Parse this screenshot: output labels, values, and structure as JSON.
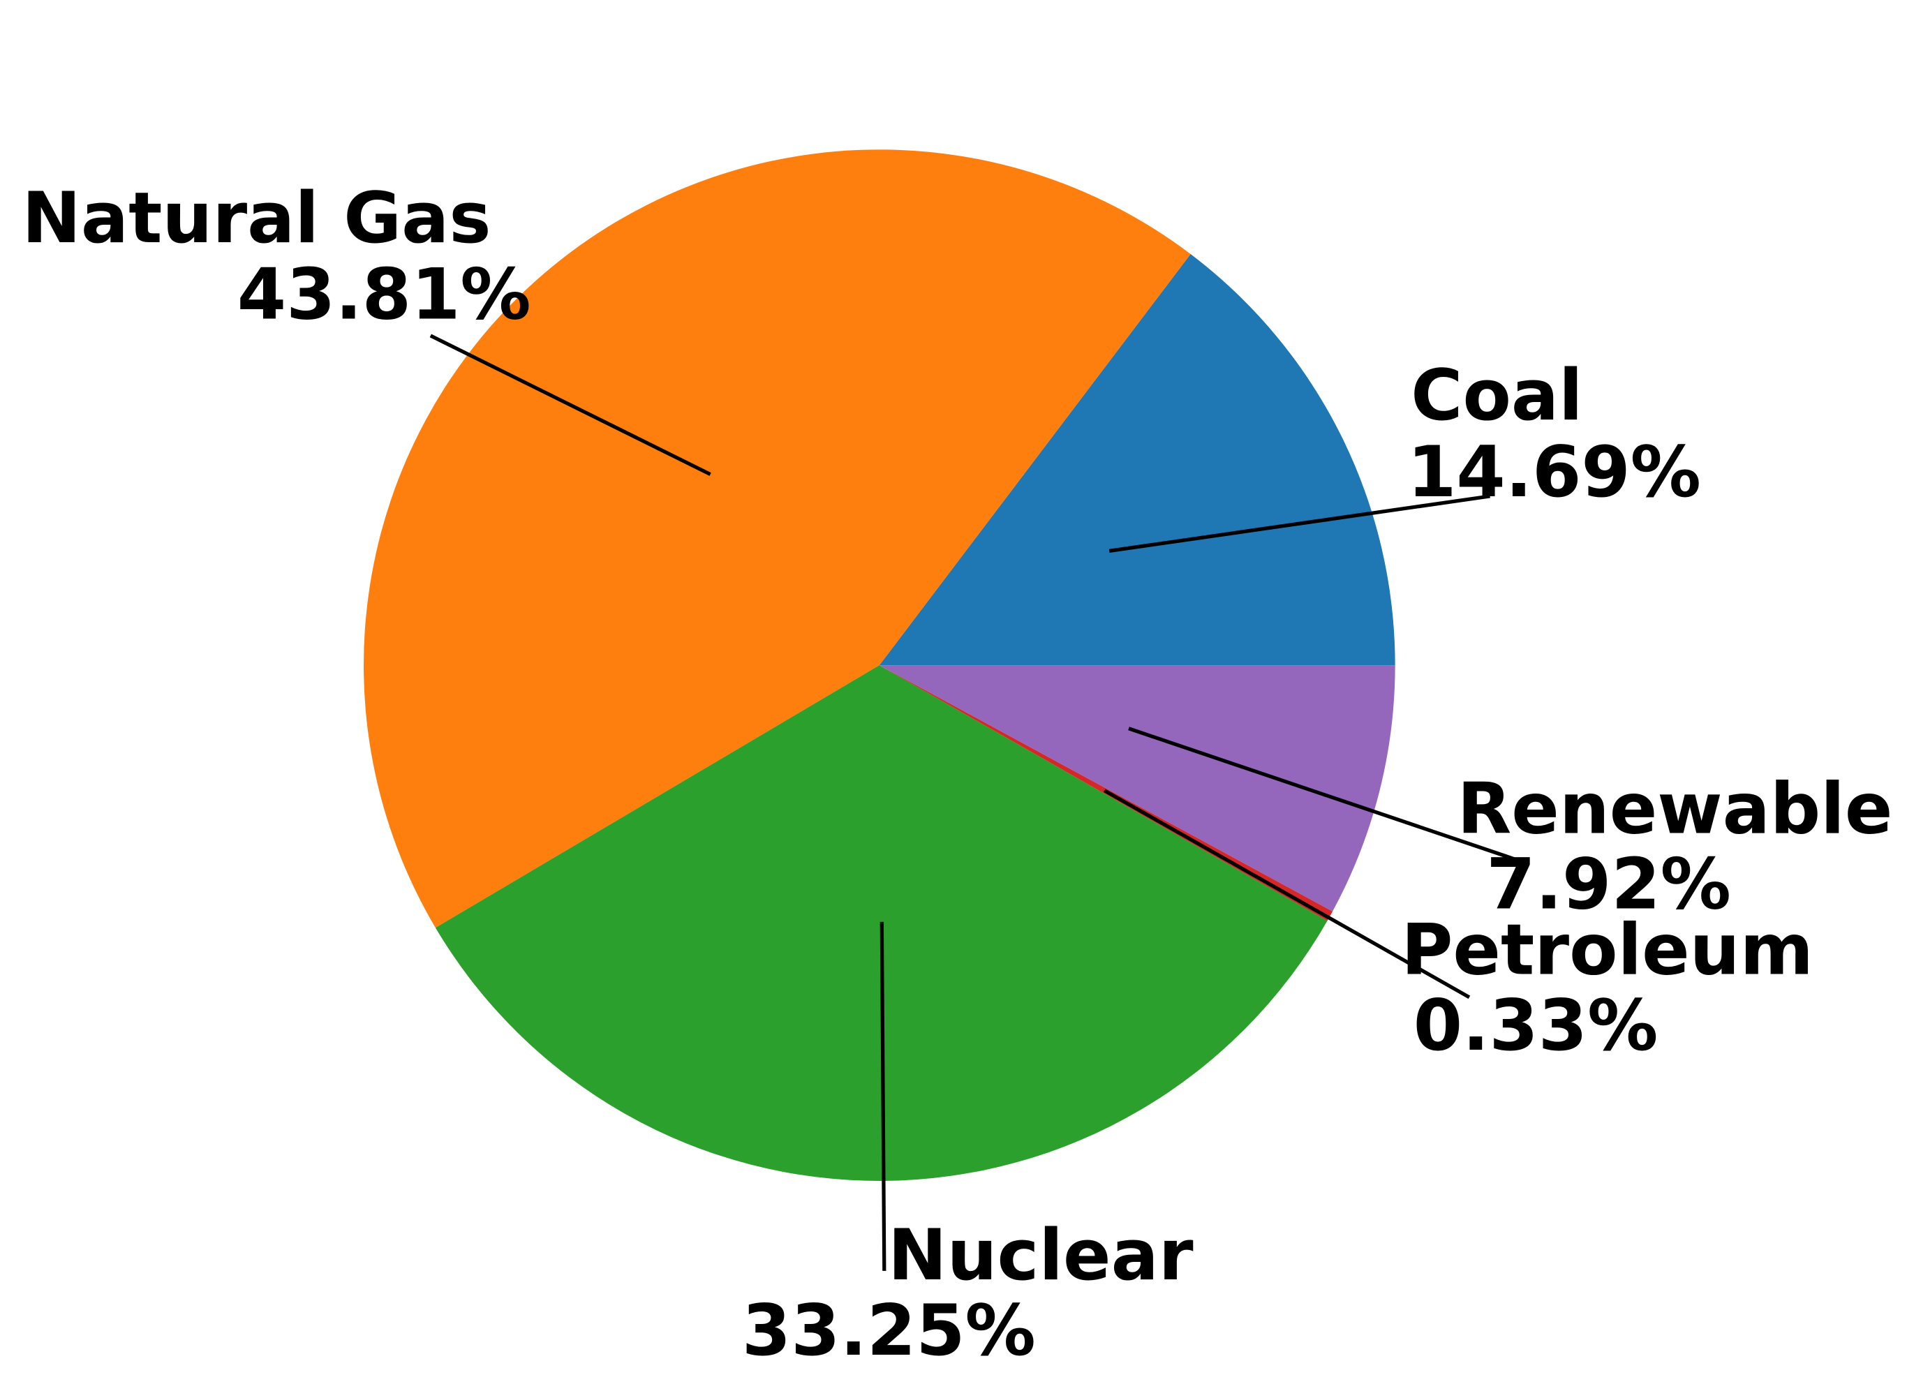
{
  "chart_data": {
    "type": "pie",
    "categories": [
      "Coal",
      "Natural Gas",
      "Nuclear",
      "Petroleum",
      "Renewable"
    ],
    "values": [
      14.69,
      43.81,
      33.25,
      0.33,
      7.92
    ],
    "value_labels": [
      "14.69%",
      "43.81%",
      "33.25%",
      "0.33%",
      "7.92%"
    ],
    "colors": [
      "#1f77b4",
      "#ff7f0e",
      "#2ca02c",
      "#d62728",
      "#9467bd"
    ]
  }
}
